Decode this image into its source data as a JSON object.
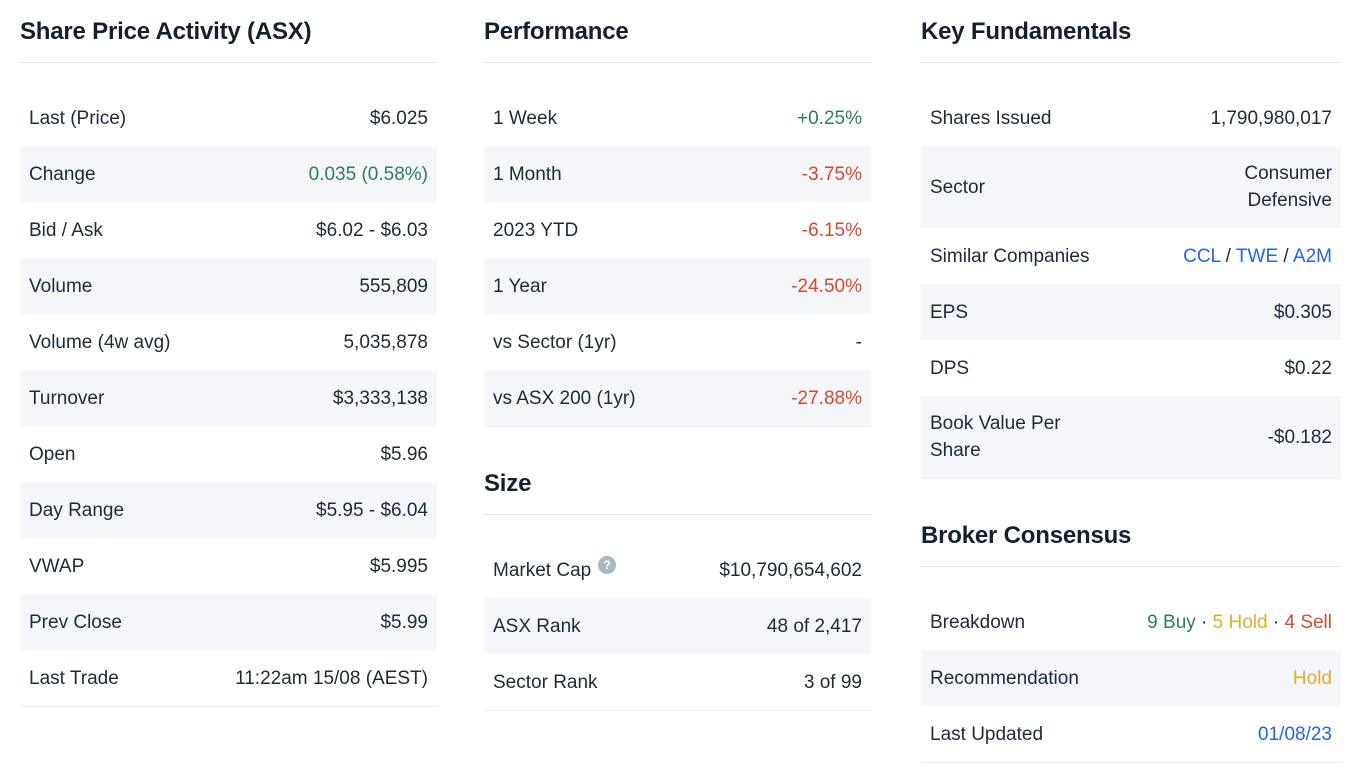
{
  "colors": {
    "text": "#1d2a3a",
    "heading": "#15202f",
    "rule": "#dfe5ec",
    "border": "#ecf0f4",
    "zebra": "#f4f6f9",
    "green": "#2f7d5a",
    "red": "#d5492f",
    "yellow": "#dfae2c",
    "blue": "#2563eb",
    "help": "#a9b8c7"
  },
  "share_price": {
    "title": "Share Price Activity (ASX)",
    "rows": [
      {
        "label": "Last (Price)",
        "value": "$6.025"
      },
      {
        "label": "Change",
        "value": "0.035 (0.58%)",
        "color": "green"
      },
      {
        "label": "Bid / Ask",
        "value": "$6.02 - $6.03"
      },
      {
        "label": "Volume",
        "value": "555,809"
      },
      {
        "label": "Volume (4w avg)",
        "value": "5,035,878"
      },
      {
        "label": "Turnover",
        "value": "$3,333,138"
      },
      {
        "label": "Open",
        "value": "$5.96"
      },
      {
        "label": "Day Range",
        "value": "$5.95 - $6.04"
      },
      {
        "label": "VWAP",
        "value": "$5.995"
      },
      {
        "label": "Prev Close",
        "value": "$5.99"
      },
      {
        "label": "Last Trade",
        "value": "11:22am 15/08 (AEST)"
      }
    ]
  },
  "performance": {
    "title": "Performance",
    "rows": [
      {
        "label": "1 Week",
        "value": "+0.25%",
        "color": "green"
      },
      {
        "label": "1 Month",
        "value": "-3.75%",
        "color": "red"
      },
      {
        "label": "2023 YTD",
        "value": "-6.15%",
        "color": "red"
      },
      {
        "label": "1 Year",
        "value": "-24.50%",
        "color": "red"
      },
      {
        "label": "vs Sector (1yr)",
        "value": "-"
      },
      {
        "label": "vs ASX 200 (1yr)",
        "value": "-27.88%",
        "color": "red"
      }
    ]
  },
  "size": {
    "title": "Size",
    "rows": [
      {
        "label": "Market Cap",
        "help_icon": "question-mark",
        "value": "$10,790,654,602"
      },
      {
        "label": "ASX Rank",
        "value": "48 of 2,417"
      },
      {
        "label": "Sector Rank",
        "value": "3 of 99"
      }
    ]
  },
  "key_fundamentals": {
    "title": "Key Fundamentals",
    "rows": [
      {
        "label": "Shares Issued",
        "value": "1,790,980,017"
      },
      {
        "label": "Sector",
        "value": "Consumer\nDefensive"
      },
      {
        "label": "Similar Companies",
        "value_parts": [
          {
            "text": "CCL",
            "color": "blue",
            "link": true,
            "name": "ticker-link-ccl"
          },
          {
            "text": " / "
          },
          {
            "text": "TWE",
            "color": "blue",
            "link": true,
            "name": "ticker-link-twe"
          },
          {
            "text": " / "
          },
          {
            "text": "A2M",
            "color": "blue",
            "link": true,
            "name": "ticker-link-a2m"
          }
        ]
      },
      {
        "label": "EPS",
        "value": "$0.305"
      },
      {
        "label": "DPS",
        "value": "$0.22"
      },
      {
        "label": "Book Value Per\nShare",
        "value": "-$0.182"
      }
    ]
  },
  "broker_consensus": {
    "title": "Broker Consensus",
    "rows": [
      {
        "label": "Breakdown",
        "value_parts": [
          {
            "text": "9 Buy",
            "color": "green",
            "name": "buy-count"
          },
          {
            "text": " · "
          },
          {
            "text": "5 Hold",
            "color": "yellow",
            "name": "hold-count"
          },
          {
            "text": " · "
          },
          {
            "text": "4 Sell",
            "color": "red",
            "name": "sell-count"
          }
        ]
      },
      {
        "label": "Recommendation",
        "value": "Hold",
        "color": "yellow"
      },
      {
        "label": "Last Updated",
        "value": "01/08/23",
        "color": "blue",
        "link": true,
        "value_name": "last-updated-link"
      }
    ]
  }
}
